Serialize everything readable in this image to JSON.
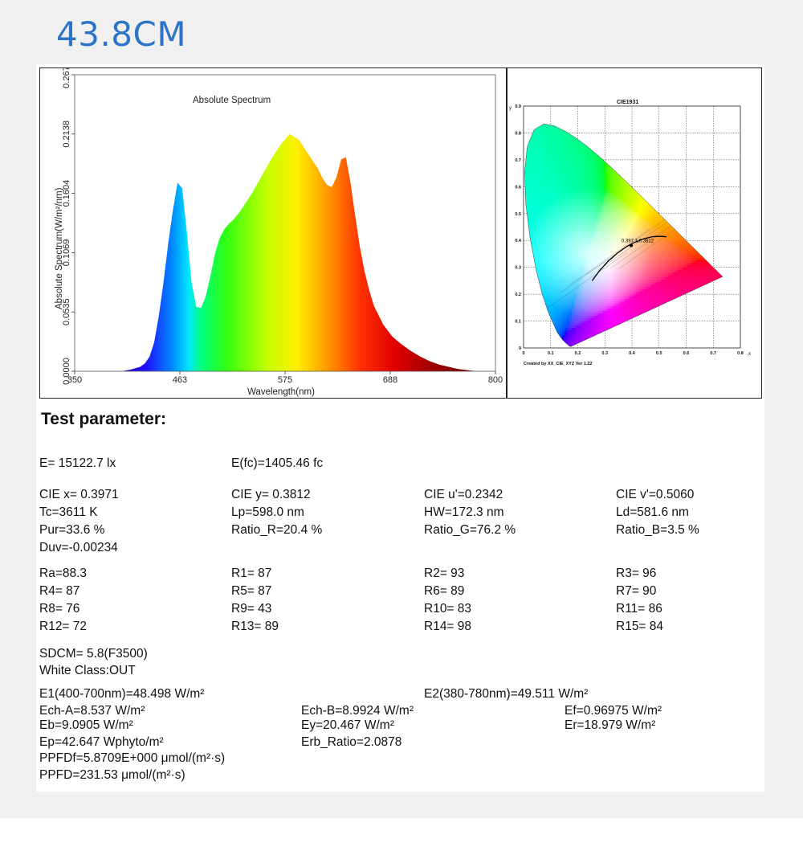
{
  "page_title": "43.8CM",
  "chart_data": [
    {
      "type": "area",
      "title": "Absolute Spectrum",
      "xlabel": "Wavelength(nm)",
      "ylabel": "Absolute Spectrum(W/m²/nm)",
      "xlim": [
        350,
        800
      ],
      "ylim": [
        0,
        0.2673
      ],
      "x_ticks": [
        "350",
        "463",
        "575",
        "688",
        "800"
      ],
      "y_ticks": [
        "0.0000",
        "0.0535",
        "0.1069",
        "0.1604",
        "0.2138",
        "0.2673"
      ],
      "x": [
        400,
        410,
        420,
        425,
        430,
        435,
        440,
        445,
        450,
        455,
        460,
        465,
        470,
        475,
        480,
        485,
        490,
        495,
        500,
        505,
        510,
        515,
        520,
        525,
        530,
        540,
        550,
        560,
        570,
        580,
        590,
        600,
        610,
        615,
        620,
        625,
        630,
        635,
        640,
        645,
        650,
        655,
        660,
        665,
        670,
        680,
        690,
        700,
        710,
        720,
        730,
        740,
        750,
        760,
        770,
        780
      ],
      "values": [
        0,
        0.0015,
        0.004,
        0.007,
        0.013,
        0.026,
        0.05,
        0.08,
        0.115,
        0.145,
        0.17,
        0.165,
        0.125,
        0.08,
        0.058,
        0.057,
        0.067,
        0.085,
        0.106,
        0.12,
        0.128,
        0.133,
        0.137,
        0.142,
        0.148,
        0.161,
        0.176,
        0.191,
        0.204,
        0.214,
        0.2085,
        0.1955,
        0.183,
        0.174,
        0.168,
        0.166,
        0.175,
        0.191,
        0.193,
        0.17,
        0.14,
        0.112,
        0.09,
        0.073,
        0.059,
        0.042,
        0.031,
        0.024,
        0.018,
        0.013,
        0.009,
        0.006,
        0.004,
        0.002,
        0.001,
        0
      ]
    },
    {
      "type": "scatter",
      "title": "CIE1931",
      "xlabel": "x",
      "ylabel": "y",
      "xlim": [
        0,
        0.8
      ],
      "ylim": [
        0,
        0.9
      ],
      "x_ticks": [
        "0",
        "0.1",
        "0.2",
        "0.3",
        "0.4",
        "0.5",
        "0.6",
        "0.7",
        "0.8"
      ],
      "y_ticks": [
        "0",
        "0.1",
        "0.2",
        "0.3",
        "0.4",
        "0.5",
        "0.6",
        "0.7",
        "0.8",
        "0.9"
      ],
      "point_label": "0.397 1,0.3812",
      "footer": "Created by XX_CIE_XYZ Ver 1.22",
      "locus": {
        "x": [
          0.1741,
          0.1738,
          0.1733,
          0.1726,
          0.1714,
          0.1689,
          0.1644,
          0.1566,
          0.144,
          0.1241,
          0.0913,
          0.0687,
          0.0454,
          0.0235,
          0.0082,
          0.0039,
          0.0139,
          0.0389,
          0.0743,
          0.1142,
          0.1547,
          0.1929,
          0.2296,
          0.2658,
          0.3016,
          0.3373,
          0.3731,
          0.4087,
          0.4441,
          0.4788,
          0.5125,
          0.5448,
          0.5752,
          0.6029,
          0.627,
          0.6482,
          0.6658,
          0.6801,
          0.6915,
          0.7006,
          0.714,
          0.7347
        ],
        "y": [
          0.005,
          0.0049,
          0.0048,
          0.0048,
          0.0051,
          0.0069,
          0.0109,
          0.0177,
          0.0297,
          0.0578,
          0.1327,
          0.2007,
          0.295,
          0.4127,
          0.5384,
          0.6548,
          0.7502,
          0.812,
          0.8338,
          0.8262,
          0.8059,
          0.7816,
          0.7543,
          0.7243,
          0.6923,
          0.6589,
          0.6245,
          0.5896,
          0.5547,
          0.5202,
          0.4866,
          0.4544,
          0.4242,
          0.3965,
          0.3725,
          0.3514,
          0.334,
          0.3197,
          0.3083,
          0.2993,
          0.2859,
          0.2653
        ]
      },
      "planckian": {
        "x": [
          0.527,
          0.513,
          0.497,
          0.476,
          0.452,
          0.437,
          0.41,
          0.38,
          0.345,
          0.323,
          0.313,
          0.281,
          0.265,
          0.253
        ],
        "y": [
          0.413,
          0.415,
          0.415,
          0.414,
          0.408,
          0.404,
          0.393,
          0.377,
          0.352,
          0.332,
          0.324,
          0.288,
          0.267,
          0.25
        ]
      },
      "measured_point": {
        "x": 0.3971,
        "y": 0.3812
      }
    }
  ],
  "test_parameter": {
    "heading": "Test parameter:",
    "E": "E=  15122.7 lx",
    "E_fc": "E(fc)=1405.46 fc",
    "cie_x": "CIE x= 0.3971",
    "cie_y": "CIE y= 0.3812",
    "cie_u": "CIE u'=0.2342",
    "cie_v": "CIE v'=0.5060",
    "tc": "Tc=3611 K",
    "lp": "Lp=598.0 nm",
    "hw": "HW=172.3 nm",
    "ld": "Ld=581.6 nm",
    "pur": "Pur=33.6 %",
    "ratio_r": "Ratio_R=20.4 %",
    "ratio_g": "Ratio_G=76.2 %",
    "ratio_b": "Ratio_B=3.5 %",
    "duv": "Duv=-0.00234",
    "ra": "Ra=88.3",
    "r1": "R1= 87",
    "r2": "R2= 93",
    "r3": "R3= 96",
    "r4": "R4= 87",
    "r5": "R5= 87",
    "r6": "R6= 89",
    "r7": "R7= 90",
    "r8": "R8= 76",
    "r9": "R9= 43",
    "r10": "R10= 83",
    "r11": "R11= 86",
    "r12": "R12= 72",
    "r13": "R13= 89",
    "r14": "R14= 98",
    "r15": "R15= 84",
    "sdcm": "SDCM= 5.8(F3500)",
    "white_class": "White Class:OUT",
    "e1": "E1(400-700nm)=48.498 W/m²",
    "e2": "E2(380-780nm)=49.511 W/m²",
    "ech_a": "Ech-A=8.537 W/m²",
    "ech_b": "Ech-B=8.9924 W/m²",
    "ef": "Ef=0.96975 W/m²",
    "eb": "Eb=9.0905 W/m²",
    "ey": "Ey=20.467 W/m²",
    "er": "Er=18.979 W/m²",
    "ep": "Ep=42.647 Wphyto/m²",
    "erb_ratio": "Erb_Ratio=2.0878",
    "ppfdf": "PPFDf=5.8709E+000 μmol/(m²·s)",
    "ppfd": "PPFD=231.53 μmol/(m²·s)"
  }
}
